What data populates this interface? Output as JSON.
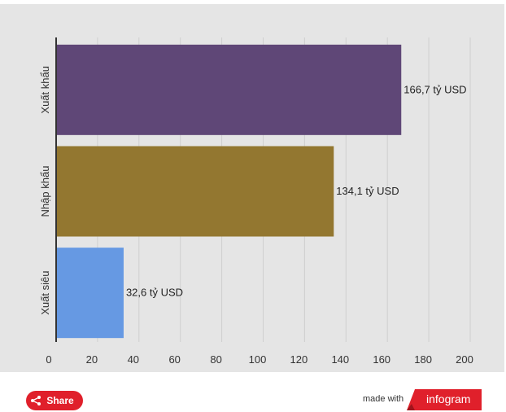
{
  "chart_data": {
    "type": "bar",
    "orientation": "horizontal",
    "categories": [
      "Xuất khẩu",
      "Nhập khẩu",
      "Xuất siêu"
    ],
    "values": [
      166.7,
      134.1,
      32.6
    ],
    "data_labels": [
      "166,7 tỷ USD",
      "134,1 tỷ USD",
      "32,6 tỷ USD"
    ],
    "colors": [
      "#5f4777",
      "#937730",
      "#6699e3"
    ],
    "x_ticks": [
      "0",
      "20",
      "40",
      "60",
      "80",
      "100",
      "120",
      "140",
      "160",
      "180",
      "200"
    ],
    "xlim": [
      0,
      200
    ],
    "grid": true,
    "title": "",
    "xlabel": "",
    "ylabel": ""
  },
  "footer": {
    "share_label": "Share",
    "made_with_label": "made with",
    "brand_label": "infogram",
    "accent_color": "#e0202b"
  }
}
